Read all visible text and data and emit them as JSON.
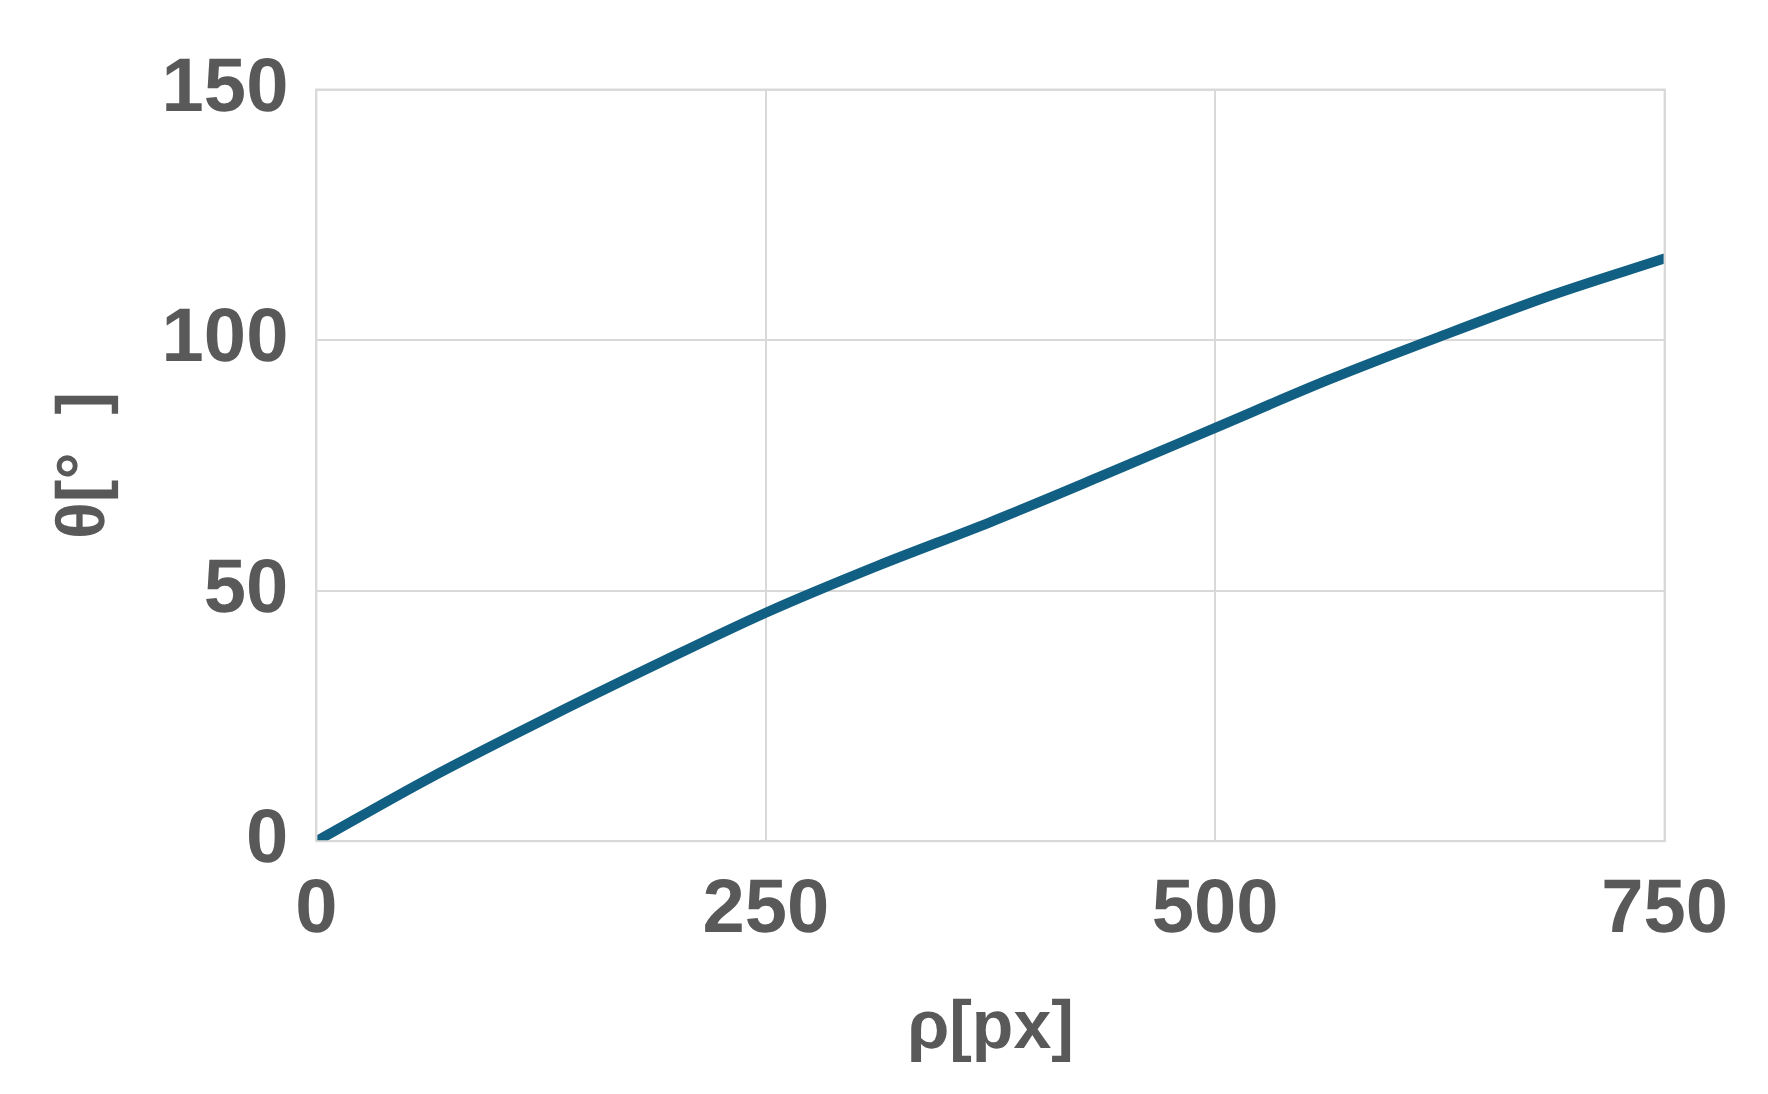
{
  "chart_data": {
    "type": "line",
    "xlabel": "ρ[px]",
    "ylabel": "θ[°  ]",
    "x": [
      0,
      62.5,
      125,
      187.5,
      250,
      312.5,
      375,
      437.5,
      500,
      562.5,
      625,
      687.5,
      750
    ],
    "series": [
      {
        "color": "#115f82",
        "values": [
          0,
          12.5,
          24,
          35,
          45.6,
          55,
          63.7,
          73,
          82.5,
          92,
          100.7,
          109,
          116.3
        ]
      }
    ],
    "xlim": [
      0,
      750
    ],
    "xticks": [
      0,
      250,
      500,
      750
    ],
    "ylim": [
      0,
      150
    ],
    "yticks": [
      0,
      50,
      100,
      150
    ],
    "grid": true,
    "legend": false,
    "marker": "none",
    "line_style": "solid"
  }
}
